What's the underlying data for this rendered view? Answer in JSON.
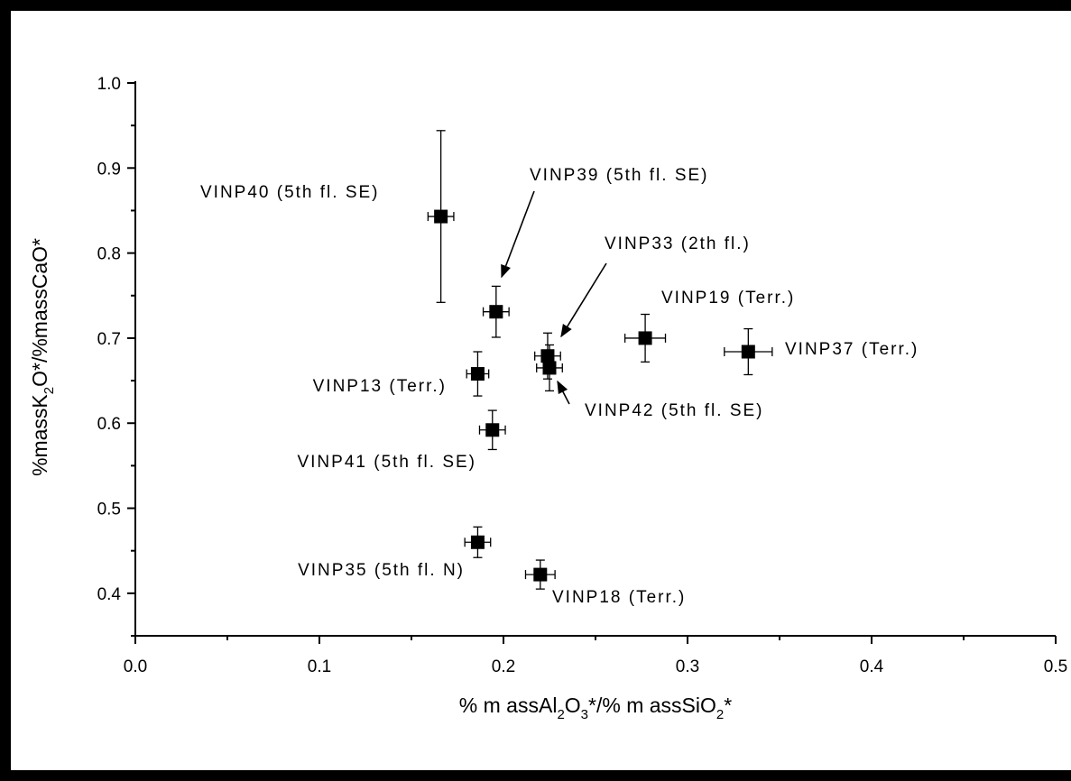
{
  "chart_data": {
    "type": "scatter",
    "title": "",
    "xlabel": {
      "parts": [
        "% m assAl",
        "2",
        "O",
        "3",
        "*/% m assSiO",
        "2",
        "*"
      ]
    },
    "ylabel": {
      "parts": [
        "%massK",
        "2",
        "O*/%massCaO*"
      ]
    },
    "xlim": [
      0.0,
      0.5
    ],
    "ylim": [
      0.35,
      1.0
    ],
    "x_ticks": [
      "0.0",
      "0.1",
      "0.2",
      "0.3",
      "0.4",
      "0.5"
    ],
    "y_ticks": [
      "0.4",
      "0.5",
      "0.6",
      "0.7",
      "0.8",
      "0.9",
      "1.0"
    ],
    "grid": false,
    "points": [
      {
        "label": "VINP40 (5th fl. SE)",
        "x": 0.166,
        "y": 0.843,
        "xerr": 0.007,
        "yerr": 0.101
      },
      {
        "label": "VINP39 (5th fl. SE)",
        "x": 0.196,
        "y": 0.731,
        "xerr": 0.007,
        "yerr": 0.03
      },
      {
        "label": "VINP33 (2th fl.)",
        "x": 0.224,
        "y": 0.679,
        "xerr": 0.007,
        "yerr": 0.027
      },
      {
        "label": "VINP42 (5th fl. SE)",
        "x": 0.225,
        "y": 0.665,
        "xerr": 0.007,
        "yerr": 0.027
      },
      {
        "label": "VINP19 (Terr.)",
        "x": 0.277,
        "y": 0.7,
        "xerr": 0.011,
        "yerr": 0.028
      },
      {
        "label": "VINP37 (Terr.)",
        "x": 0.333,
        "y": 0.684,
        "xerr": 0.013,
        "yerr": 0.027
      },
      {
        "label": "VINP13 (Terr.)",
        "x": 0.186,
        "y": 0.658,
        "xerr": 0.006,
        "yerr": 0.026
      },
      {
        "label": "VINP41 (5th fl. SE)",
        "x": 0.194,
        "y": 0.592,
        "xerr": 0.007,
        "yerr": 0.023
      },
      {
        "label": "VINP35 (5th fl. N)",
        "x": 0.186,
        "y": 0.46,
        "xerr": 0.007,
        "yerr": 0.018
      },
      {
        "label": "VINP18 (Terr.)",
        "x": 0.22,
        "y": 0.422,
        "xerr": 0.008,
        "yerr": 0.017
      }
    ]
  }
}
